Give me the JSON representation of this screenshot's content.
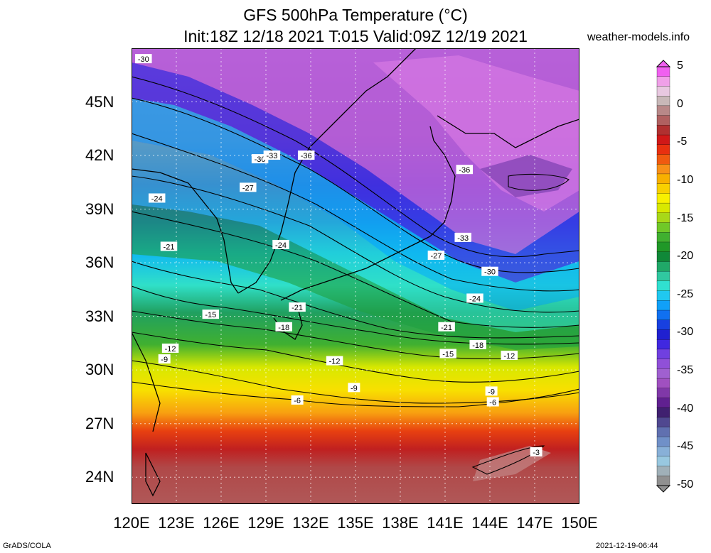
{
  "title": {
    "line1": "GFS 500hPa Temperature (°C)",
    "line2": "Init:18Z 12/18 2021 T:015 Valid:09Z 12/19 2021"
  },
  "site": "weather-models.info",
  "lat_labels": [
    "45N",
    "42N",
    "39N",
    "36N",
    "33N",
    "30N",
    "27N",
    "24N"
  ],
  "lat_values": [
    45,
    42,
    39,
    36,
    33,
    30,
    27,
    24
  ],
  "lon_labels": [
    "120E",
    "123E",
    "126E",
    "129E",
    "132E",
    "135E",
    "138E",
    "141E",
    "144E",
    "147E",
    "150E"
  ],
  "lon_values": [
    120,
    123,
    126,
    129,
    132,
    135,
    138,
    141,
    144,
    147,
    150
  ],
  "colorbar": {
    "labels": [
      "5",
      "0",
      "-5",
      "-10",
      "-15",
      "-20",
      "-25",
      "-30",
      "-35",
      "-40",
      "-45",
      "-50"
    ],
    "values": [
      5,
      0,
      -5,
      -10,
      -15,
      -20,
      -25,
      -30,
      -35,
      -40,
      -45,
      -50
    ],
    "colors": [
      "#f060f0",
      "#f0a0e8",
      "#e8c8e0",
      "#c8b8b8",
      "#b88888",
      "#b06060",
      "#b03030",
      "#d01818",
      "#e83010",
      "#f05a10",
      "#f89018",
      "#f8b000",
      "#f8d000",
      "#f8f000",
      "#d8e800",
      "#a8d818",
      "#70c828",
      "#40b030",
      "#209828",
      "#108838",
      "#20a868",
      "#30c8a0",
      "#30e0d0",
      "#20c8f0",
      "#10a0f8",
      "#1070f0",
      "#1840e0",
      "#2020d0",
      "#4028e0",
      "#7040e0",
      "#9050d8",
      "#a060d0",
      "#a050c0",
      "#8038a8",
      "#602090",
      "#402070",
      "#504890",
      "#6070b0",
      "#7090c8",
      "#88b0d8",
      "#98c8e0",
      "#a0b0b8",
      "#909090"
    ]
  },
  "contour_labels": [
    {
      "text": "-30",
      "lon": 120.8,
      "lat": 47.4
    },
    {
      "text": "-30",
      "lon": 128.6,
      "lat": 41.8
    },
    {
      "text": "-33",
      "lon": 129.4,
      "lat": 42.0
    },
    {
      "text": "-36",
      "lon": 131.7,
      "lat": 42.0
    },
    {
      "text": "-36",
      "lon": 142.3,
      "lat": 41.2
    },
    {
      "text": "-27",
      "lon": 127.8,
      "lat": 40.2
    },
    {
      "text": "-24",
      "lon": 121.7,
      "lat": 39.6
    },
    {
      "text": "-21",
      "lon": 122.5,
      "lat": 36.9
    },
    {
      "text": "-24",
      "lon": 130.0,
      "lat": 37.0
    },
    {
      "text": "-33",
      "lon": 142.2,
      "lat": 37.4
    },
    {
      "text": "-27",
      "lon": 140.4,
      "lat": 36.4
    },
    {
      "text": "-30",
      "lon": 144.0,
      "lat": 35.5
    },
    {
      "text": "-24",
      "lon": 143.0,
      "lat": 34.0
    },
    {
      "text": "-21",
      "lon": 131.1,
      "lat": 33.5
    },
    {
      "text": "-15",
      "lon": 125.3,
      "lat": 33.1
    },
    {
      "text": "-18",
      "lon": 130.2,
      "lat": 32.4
    },
    {
      "text": "-21",
      "lon": 141.1,
      "lat": 32.4
    },
    {
      "text": "-18",
      "lon": 143.2,
      "lat": 31.4
    },
    {
      "text": "-15",
      "lon": 141.2,
      "lat": 30.9
    },
    {
      "text": "-12",
      "lon": 145.3,
      "lat": 30.8
    },
    {
      "text": "-12",
      "lon": 122.6,
      "lat": 31.2
    },
    {
      "text": "-9",
      "lon": 122.2,
      "lat": 30.6
    },
    {
      "text": "-12",
      "lon": 133.6,
      "lat": 30.5
    },
    {
      "text": "-9",
      "lon": 134.9,
      "lat": 29.0
    },
    {
      "text": "-9",
      "lon": 144.1,
      "lat": 28.8
    },
    {
      "text": "-6",
      "lon": 131.1,
      "lat": 28.3
    },
    {
      "text": "-6",
      "lon": 144.2,
      "lat": 28.2
    },
    {
      "text": "-3",
      "lon": 147.1,
      "lat": 25.4
    }
  ],
  "footer": {
    "left": "GrADS/COLA",
    "right": "2021-12-19-06:44"
  }
}
